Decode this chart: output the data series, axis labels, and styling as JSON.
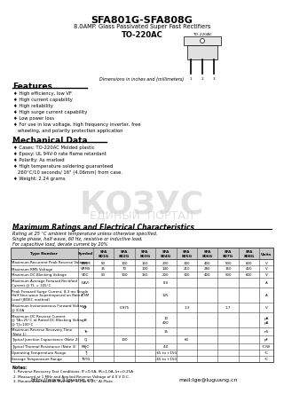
{
  "title": "SFA801G-SFA808G",
  "subtitle": "8.0AMP. Glass Passivated Super Fast Rectifiers",
  "package": "TO-220AC",
  "features_title": "Features",
  "features": [
    "High efficiency, low VF",
    "High current capability",
    "High reliability",
    "High surge current capability",
    "Low power loss",
    "For use in low voltage, high frequency inverter, free",
    "  wheeling, and polarity protection application"
  ],
  "mech_title": "Mechanical Data",
  "mech": [
    "Cases: TO-220AC Molded plastic",
    "Epoxy: UL 94V-0 rate flame retardant",
    "Polarity: As marked",
    "High temperature soldering guaranteed",
    "  260°C/10 seconds/ 16\" (4.06mm) from case.",
    "Weight: 2.24 grams"
  ],
  "dim_note": "Dimensions in inches and (millimeters)",
  "ratings_title": "Maximum Ratings and Electrical Characteristics",
  "ratings_note1": "Rating at 25 °C ambient temperature unless otherwise specified.",
  "ratings_note2": "Single phase, half wave, 60 Hz, resistive or inductive load.",
  "ratings_note3": "For capacitive load, derate current by 20%",
  "table_headers": [
    "Type Number",
    "Symbol",
    "SFA\n801G",
    "SFA\n802G",
    "SFA\n803G",
    "SFA\n804G",
    "SFA\n805G",
    "SFA\n806G",
    "SFA\n807G",
    "SFA\n808G",
    "Units"
  ],
  "table_rows": [
    [
      "Maximum Recurrent Peak Reverse Voltage",
      "VRRM",
      "50",
      "100",
      "150",
      "200",
      "300",
      "400",
      "500",
      "600",
      "V"
    ],
    [
      "Maximum RMS Voltage",
      "VRMS",
      "35",
      "70",
      "100",
      "140",
      "210",
      "280",
      "350",
      "420",
      "V"
    ],
    [
      "Maximum DC Blocking Voltage",
      "VDC",
      "50",
      "100",
      "150",
      "200",
      "300",
      "400",
      "500",
      "600",
      "V"
    ],
    [
      "Maximum Average Forward Rectified\nCurrent @ TL = 105°C",
      "I(AV)",
      "",
      "",
      "",
      "8.0",
      "",
      "",
      "",
      "",
      "A"
    ],
    [
      "Peak Forward Surge Current; 8.3 ms Single\nHalf Sine-wave Superimposed on Rated\nLoad (JEDEC method)",
      "IFSM",
      "",
      "",
      "",
      "125",
      "",
      "",
      "",
      "",
      "A"
    ],
    [
      "Maximum Instantaneous Forward Voltage\n@ 8.0A",
      "VF",
      "",
      "0.975",
      "",
      "",
      "1.3",
      "",
      "1.7",
      "",
      "V"
    ],
    [
      "Maximum DC Reverse Current\n@ TA=25°C at Rated DC Blocking Voltage\n@ TJ=100°C",
      "IR",
      "",
      "",
      "",
      "10\n400",
      "",
      "",
      "",
      "",
      "μA\nμA"
    ],
    [
      "Maximum Reverse Recovery Time\n(Note 1)",
      "Trr",
      "",
      "",
      "",
      "35",
      "",
      "",
      "",
      "",
      "nS"
    ],
    [
      "Typical Junction Capacitance (Note 2)",
      "CJ",
      "",
      "100",
      "",
      "",
      "60",
      "",
      "",
      "",
      "pF"
    ],
    [
      "Typical Thermal Resistance (Note 3)",
      "RθJC",
      "",
      "",
      "",
      "4.0",
      "",
      "",
      "",
      "",
      "°C/W"
    ],
    [
      "Operating Temperature Range",
      "TJ",
      "",
      "",
      "",
      "-65 to +150",
      "",
      "",
      "",
      "",
      "°C"
    ],
    [
      "Storage Temperature Range",
      "TSTG",
      "",
      "",
      "",
      "-65 to +150",
      "",
      "",
      "",
      "",
      "°C"
    ]
  ],
  "notes": [
    "1. Reverse Recovery Test Conditions: IF=0.5A, IR=1.0A, Irr=0.25A",
    "2. Measured at 1 MHz and Applied Reverse Voltage of 4.0 V D.C.",
    "3. Mounted on Heatsink Size of 2\" x 2\" x 0.25\" Al-Plate."
  ],
  "website": "http://www.luguang.cn",
  "email": "mail:lge@luguang.cn",
  "bg_color": "#ffffff",
  "table_header_bg": "#cccccc",
  "table_line_color": "#444444"
}
